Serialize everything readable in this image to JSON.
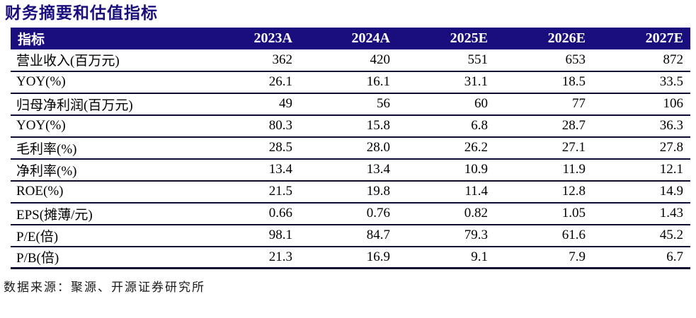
{
  "title": "财务摘要和估值指标",
  "source": "数据来源：聚源、开源证券研究所",
  "colors": {
    "brand_navy": "#1a0d7e",
    "header_text": "#ffffff",
    "table_line": "#0d0b33",
    "body_text": "#000000"
  },
  "table": {
    "header": [
      "指标",
      "2023A",
      "2024A",
      "2025E",
      "2026E",
      "2027E"
    ],
    "rows": [
      {
        "label": "营业收入(百万元)",
        "values": [
          "362",
          "420",
          "551",
          "653",
          "872"
        ]
      },
      {
        "label": "YOY(%)",
        "values": [
          "26.1",
          "16.1",
          "31.1",
          "18.5",
          "33.5"
        ]
      },
      {
        "label": "归母净利润(百万元)",
        "values": [
          "49",
          "56",
          "60",
          "77",
          "106"
        ]
      },
      {
        "label": "YOY(%)",
        "values": [
          "80.3",
          "15.8",
          "6.8",
          "28.7",
          "36.3"
        ]
      },
      {
        "label": "毛利率(%)",
        "values": [
          "28.5",
          "28.0",
          "26.2",
          "27.1",
          "27.8"
        ]
      },
      {
        "label": "净利率(%)",
        "values": [
          "13.4",
          "13.4",
          "10.9",
          "11.9",
          "12.1"
        ]
      },
      {
        "label": "ROE(%)",
        "values": [
          "21.5",
          "19.8",
          "11.4",
          "12.8",
          "14.9"
        ]
      },
      {
        "label": "EPS(摊薄/元)",
        "values": [
          "0.66",
          "0.76",
          "0.82",
          "1.05",
          "1.43"
        ]
      },
      {
        "label": "P/E(倍)",
        "values": [
          "98.1",
          "84.7",
          "79.3",
          "61.6",
          "45.2"
        ]
      },
      {
        "label": "P/B(倍)",
        "values": [
          "21.3",
          "16.9",
          "9.1",
          "7.9",
          "6.7"
        ]
      }
    ]
  }
}
